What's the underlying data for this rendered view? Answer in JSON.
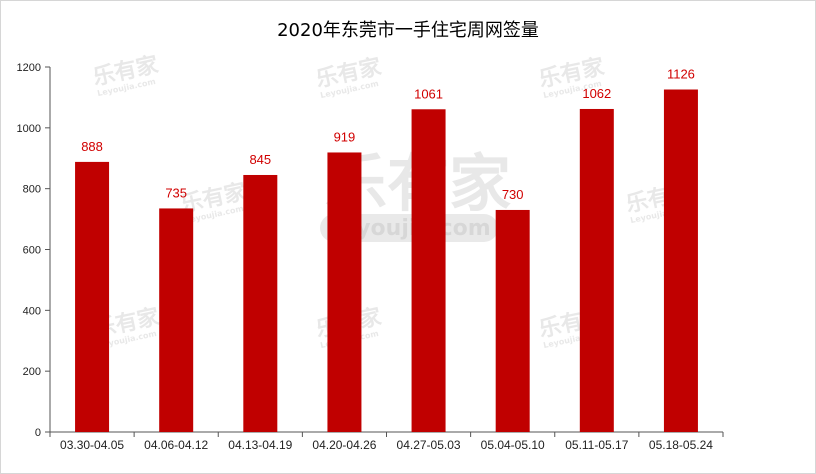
{
  "chart_data": {
    "type": "bar",
    "title": "2020年东莞市一手住宅周网签量",
    "categories": [
      "03.30-04.05",
      "04.06-04.12",
      "04.13-04.19",
      "04.20-04.26",
      "04.27-05.03",
      "05.04-05.10",
      "05.11-05.17",
      "05.18-05.24"
    ],
    "values": [
      888,
      735,
      845,
      919,
      1061,
      730,
      1062,
      1126
    ],
    "ylim": [
      0,
      1200
    ],
    "yticks": [
      0,
      200,
      400,
      600,
      800,
      1000,
      1200
    ],
    "xlabel": "",
    "ylabel": "",
    "grid": false,
    "legend": "none",
    "bar_color": "#c00000",
    "label_color": "#d10000"
  },
  "watermark": {
    "brand": "乐有家",
    "domain": "Leyoujia.com"
  }
}
